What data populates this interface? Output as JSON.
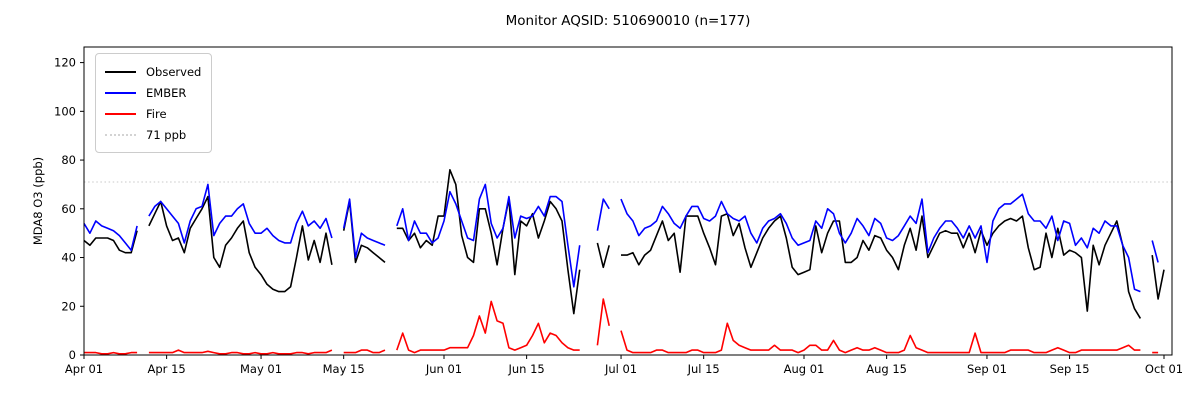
{
  "chart_data": {
    "type": "line",
    "title": "Monitor AQSID: 510690010 (n=177)",
    "ylabel": "MDA8 O3 (ppb)",
    "xlabel": "",
    "grid": false,
    "legend_position": "upper left",
    "x_unit": "daily values; index 0 = Apr 01, index 183 = Oct 01; null = missing day",
    "x_ticks": [
      {
        "label": "Apr 01",
        "day": 0
      },
      {
        "label": "Apr 15",
        "day": 14
      },
      {
        "label": "May 01",
        "day": 30
      },
      {
        "label": "May 15",
        "day": 44
      },
      {
        "label": "Jun 01",
        "day": 61
      },
      {
        "label": "Jun 15",
        "day": 75
      },
      {
        "label": "Jul 01",
        "day": 91
      },
      {
        "label": "Jul 15",
        "day": 105
      },
      {
        "label": "Aug 01",
        "day": 122
      },
      {
        "label": "Aug 15",
        "day": 136
      },
      {
        "label": "Sep 01",
        "day": 153
      },
      {
        "label": "Sep 15",
        "day": 167
      },
      {
        "label": "Oct 01",
        "day": 183
      }
    ],
    "y_ticks": [
      0,
      20,
      40,
      60,
      80,
      100,
      120
    ],
    "ylim": [
      0,
      126.4
    ],
    "xlim_days": [
      0,
      184.3
    ],
    "threshold_line": {
      "label": "71 ppb",
      "value": 71,
      "color": "#d3d3d3",
      "style": "dotted"
    },
    "series": [
      {
        "name": "Observed",
        "color": "#000000",
        "values": [
          47,
          45,
          48,
          48,
          48,
          47,
          43,
          42,
          42,
          51,
          null,
          53,
          58,
          63,
          53,
          47,
          48,
          42,
          52,
          56,
          60,
          65,
          40,
          36,
          45,
          48,
          52,
          55,
          42,
          36,
          33,
          29,
          27,
          26,
          26,
          28,
          40,
          53,
          39,
          47,
          38,
          50,
          37,
          null,
          51,
          63,
          38,
          45,
          44,
          42,
          40,
          38,
          null,
          52,
          52,
          47,
          50,
          44,
          47,
          45,
          57,
          57,
          76,
          70,
          49,
          40,
          38,
          60,
          60,
          50,
          37,
          52,
          64,
          33,
          55,
          53,
          58,
          48,
          55,
          63,
          60,
          55,
          35,
          17,
          35,
          null,
          null,
          46,
          36,
          45,
          null,
          41,
          41,
          42,
          37,
          41,
          43,
          49,
          55,
          47,
          50,
          34,
          57,
          57,
          57,
          50,
          44,
          37,
          57,
          58,
          49,
          54,
          44,
          36,
          42,
          48,
          52,
          55,
          57,
          48,
          36,
          33,
          34,
          35,
          53,
          42,
          50,
          55,
          55,
          38,
          38,
          40,
          47,
          43,
          49,
          48,
          43,
          40,
          35,
          45,
          52,
          43,
          57,
          40,
          45,
          50,
          51,
          50,
          50,
          44,
          50,
          42,
          51,
          45,
          50,
          53,
          55,
          56,
          55,
          57,
          44,
          35,
          36,
          50,
          40,
          52,
          41,
          43,
          42,
          40,
          18,
          45,
          37,
          45,
          50,
          55,
          45,
          26,
          19,
          15,
          null,
          41,
          23,
          35
        ]
      },
      {
        "name": "EMBER",
        "color": "#0000ff",
        "values": [
          54,
          50,
          55,
          53,
          52,
          51,
          49,
          46,
          43,
          53,
          null,
          57,
          61,
          63,
          60,
          57,
          54,
          46,
          55,
          60,
          61,
          70,
          49,
          54,
          57,
          57,
          60,
          62,
          54,
          50,
          50,
          52,
          49,
          47,
          46,
          46,
          54,
          59,
          53,
          55,
          52,
          56,
          48,
          null,
          52,
          64,
          40,
          50,
          48,
          47,
          46,
          45,
          null,
          53,
          60,
          47,
          55,
          50,
          50,
          46,
          48,
          55,
          67,
          62,
          55,
          48,
          47,
          64,
          70,
          54,
          48,
          52,
          65,
          48,
          57,
          56,
          57,
          61,
          57,
          65,
          65,
          63,
          45,
          28,
          45,
          null,
          null,
          51,
          64,
          60,
          null,
          64,
          58,
          55,
          49,
          52,
          53,
          55,
          61,
          58,
          54,
          52,
          57,
          61,
          61,
          56,
          55,
          57,
          63,
          58,
          56,
          55,
          57,
          50,
          46,
          52,
          55,
          56,
          58,
          54,
          48,
          45,
          46,
          47,
          55,
          52,
          60,
          58,
          50,
          46,
          50,
          56,
          53,
          49,
          56,
          54,
          48,
          47,
          49,
          53,
          57,
          54,
          64,
          42,
          48,
          52,
          55,
          55,
          52,
          48,
          53,
          48,
          53,
          38,
          55,
          60,
          62,
          62,
          64,
          66,
          58,
          55,
          55,
          52,
          57,
          47,
          55,
          54,
          45,
          48,
          44,
          52,
          50,
          55,
          53,
          53,
          45,
          40,
          27,
          26,
          null,
          47,
          38,
          null
        ]
      },
      {
        "name": "Fire",
        "color": "#ff0000",
        "values": [
          1,
          1,
          1,
          0.5,
          0.5,
          1,
          0.5,
          0.5,
          1,
          1,
          null,
          1,
          1,
          1,
          1,
          1,
          2,
          1,
          1,
          1,
          1,
          1.5,
          1,
          0.5,
          0.5,
          1,
          1,
          0.5,
          0.5,
          1,
          0.5,
          0.5,
          1,
          0.5,
          0.5,
          0.5,
          1,
          1,
          0.5,
          1,
          1,
          1,
          2,
          null,
          1,
          1,
          1,
          2,
          2,
          1,
          1,
          2,
          null,
          2,
          9,
          2,
          1,
          2,
          2,
          2,
          2,
          2,
          3,
          3,
          3,
          3,
          8,
          16,
          9,
          22,
          14,
          13,
          3,
          2,
          3,
          4,
          8,
          13,
          5,
          9,
          8,
          5,
          3,
          2,
          2,
          null,
          null,
          4,
          23,
          12,
          null,
          10,
          2,
          1,
          1,
          1,
          1,
          2,
          2,
          1,
          1,
          1,
          1,
          2,
          2,
          1,
          1,
          1,
          2,
          13,
          6,
          4,
          3,
          2,
          2,
          2,
          2,
          4,
          2,
          2,
          2,
          1,
          2,
          4,
          4,
          2,
          2,
          6,
          2,
          1,
          2,
          3,
          2,
          2,
          3,
          2,
          1,
          1,
          1,
          2,
          8,
          3,
          2,
          1,
          1,
          1,
          1,
          1,
          1,
          1,
          1,
          9,
          1,
          1,
          1,
          1,
          1,
          2,
          2,
          2,
          2,
          1,
          1,
          1,
          2,
          3,
          2,
          1,
          1,
          2,
          2,
          2,
          2,
          2,
          2,
          2,
          3,
          4,
          2,
          2,
          null,
          1,
          1,
          null
        ]
      }
    ]
  }
}
